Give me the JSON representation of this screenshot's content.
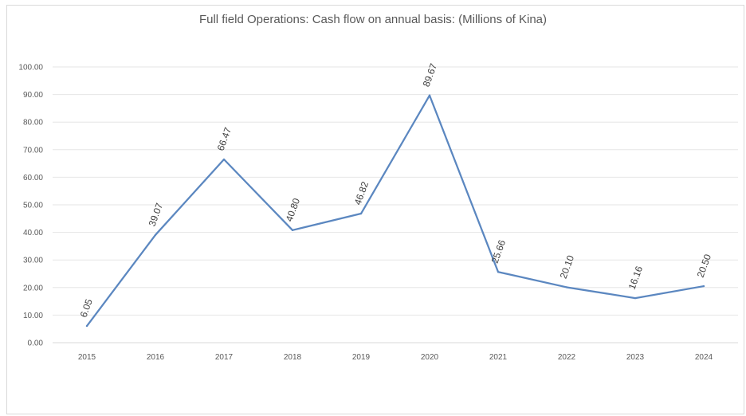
{
  "chart_data": {
    "type": "line",
    "title": "Full field Operations: Cash flow on annual basis: (Millions of Kina)",
    "xlabel": "",
    "ylabel": "",
    "categories": [
      "2015",
      "2016",
      "2017",
      "2018",
      "2019",
      "2020",
      "2021",
      "2022",
      "2023",
      "2024"
    ],
    "series": [
      {
        "values": [
          6.05,
          39.07,
          66.47,
          40.8,
          46.82,
          89.67,
          25.66,
          20.1,
          16.16,
          20.5
        ],
        "labels": [
          "6.05",
          "39.07",
          "66.47",
          "40.80",
          "46.82",
          "89.67",
          "25.66",
          "20.10",
          "16.16",
          "20.50"
        ],
        "color": "#5b87c0"
      }
    ],
    "ylim": [
      0,
      100
    ],
    "yticks": [
      "0.00",
      "10.00",
      "20.00",
      "30.00",
      "40.00",
      "50.00",
      "60.00",
      "70.00",
      "80.00",
      "90.00",
      "100.00"
    ],
    "grid": true,
    "legend": "none",
    "colors": {
      "line": "#5b87c0",
      "grid": "#e6e6e6",
      "axis": "#d9d9d9"
    }
  }
}
